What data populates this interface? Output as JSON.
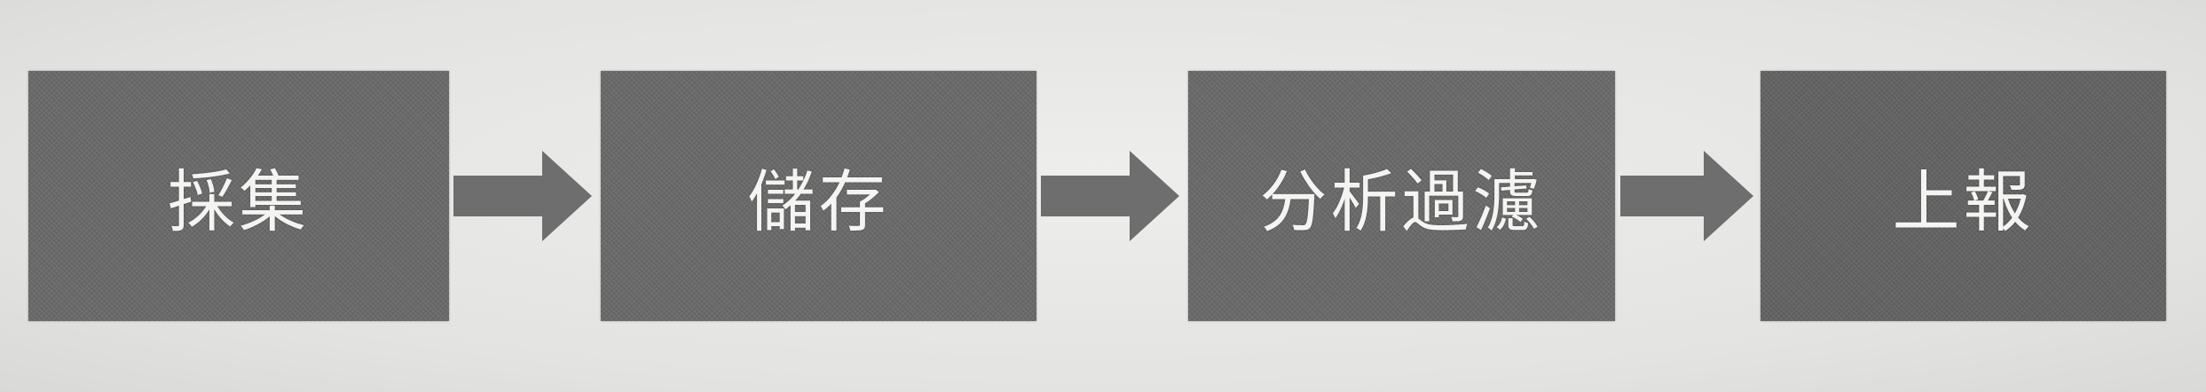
{
  "diagram": {
    "steps": [
      {
        "label": "採集"
      },
      {
        "label": "儲存"
      },
      {
        "label": "分析過濾"
      },
      {
        "label": "上報"
      }
    ],
    "arrow_color": "#6e6e6e",
    "box_color": "#6b6b6b",
    "text_color": "#f4f4f2",
    "background_color": "#e8e8e6"
  }
}
